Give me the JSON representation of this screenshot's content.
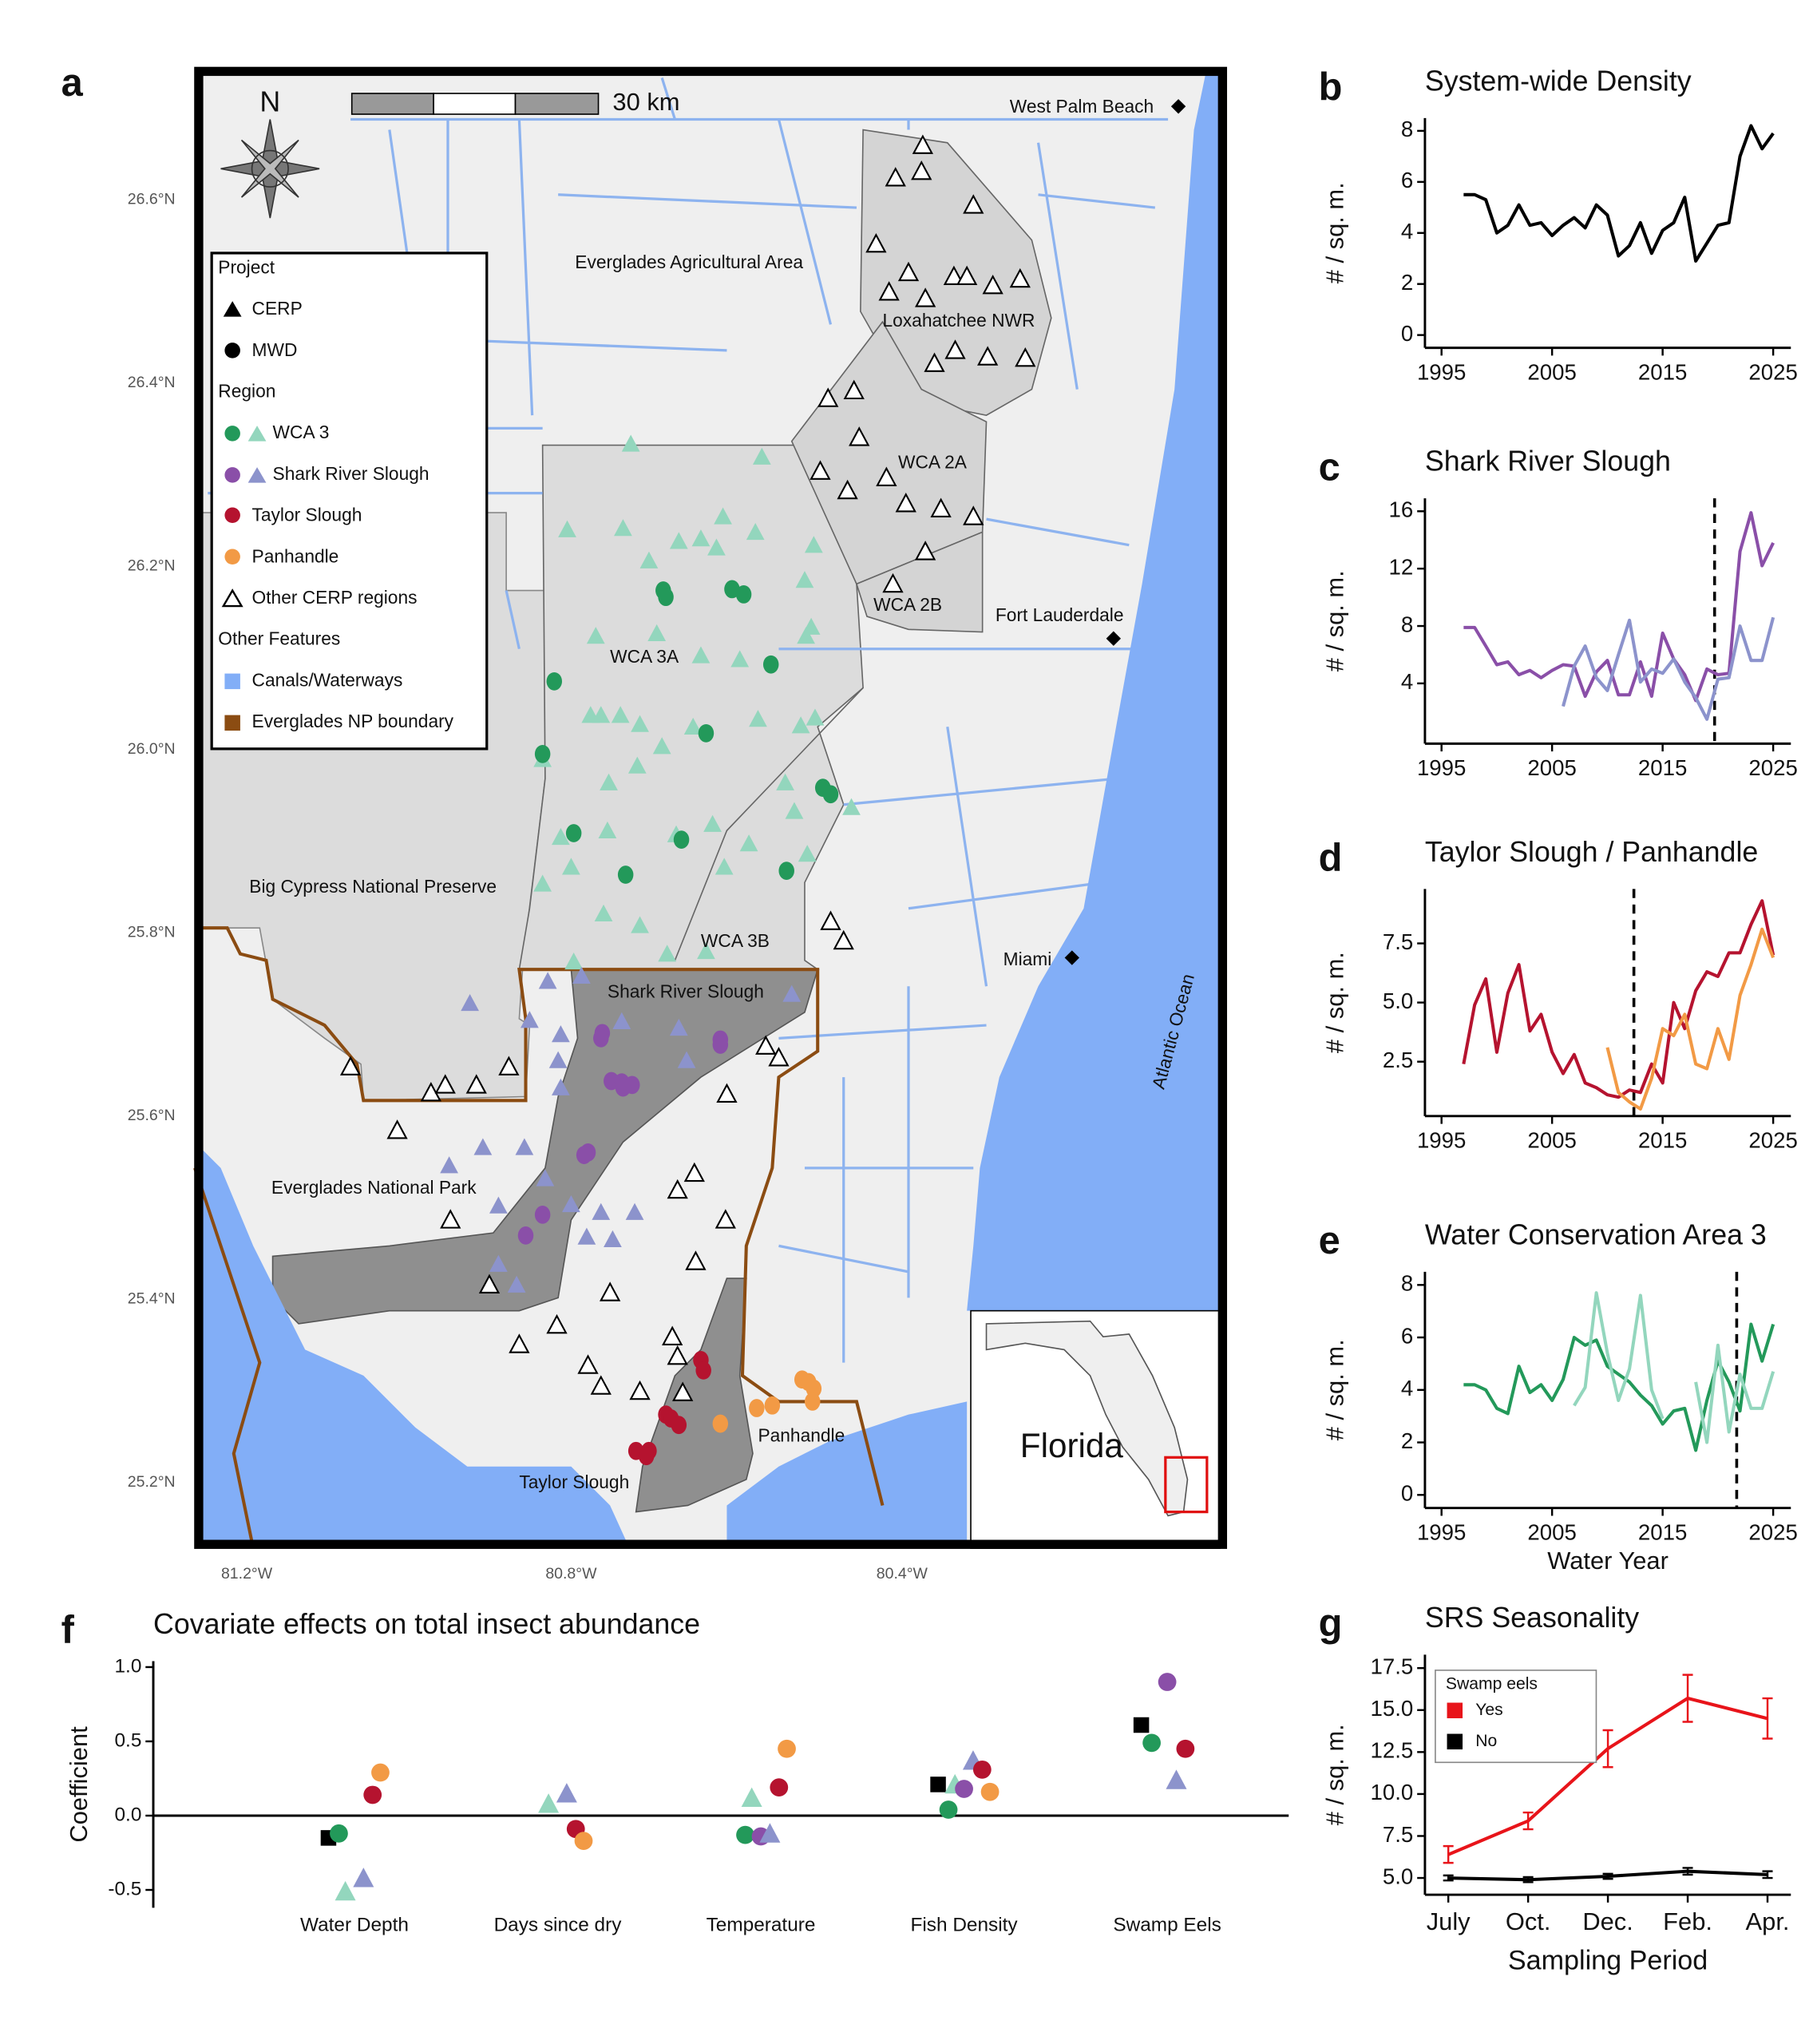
{
  "map": {
    "label": "a",
    "north": "N",
    "scale": "30 km",
    "places": [
      "West Palm Beach",
      "Everglades Agricultural Area",
      "Loxahatchee NWR",
      "WCA 2A",
      "WCA 2B",
      "Fort Lauderdale",
      "WCA 3A",
      "Big Cypress National Preserve",
      "WCA 3B",
      "Miami",
      "Shark River Slough",
      "Atlantic Ocean",
      "Everglades National Park",
      "Panhandle",
      "Taylor Slough",
      "Florida"
    ],
    "legend": [
      "Project",
      "CERP",
      "MWD",
      "Region",
      "WCA 3",
      "Shark River Slough",
      "Taylor Slough",
      "Panhandle",
      "Other CERP regions",
      "Other Features",
      "Canals/Waterways",
      "Everglades NP boundary"
    ],
    "lat_labels": [
      "26.6°N",
      "26.4°N",
      "26.2°N",
      "26.0°N",
      "25.8°N",
      "25.6°N",
      "25.4°N",
      "25.2°N"
    ],
    "lon_labels": [
      "81.2°W",
      "80.8°W",
      "80.4°W"
    ]
  },
  "chart_data": [
    {
      "label": "b",
      "type": "line",
      "title": "System-wide Density",
      "ylabel": "# / sq. m.",
      "x": [
        1997,
        1998,
        1999,
        2000,
        2001,
        2002,
        2003,
        2004,
        2005,
        2006,
        2007,
        2008,
        2009,
        2010,
        2011,
        2012,
        2013,
        2014,
        2015,
        2016,
        2017,
        2018,
        2019,
        2020,
        2021,
        2022,
        2023,
        2024,
        2025
      ],
      "series": [
        {
          "color": "#000000",
          "values": [
            5.5,
            5.5,
            5.3,
            4.0,
            4.3,
            5.1,
            4.3,
            4.4,
            3.9,
            4.3,
            4.6,
            4.2,
            5.1,
            4.7,
            3.1,
            3.5,
            4.4,
            3.2,
            4.1,
            4.4,
            5.4,
            2.9,
            3.6,
            4.3,
            4.4,
            7.0,
            8.2,
            7.3,
            7.9
          ]
        }
      ],
      "xlim": [
        1993.5,
        2026.6
      ],
      "xticks": [
        1995,
        2005,
        2015,
        2025
      ],
      "ylim": [
        -0.5,
        8.5
      ],
      "yticks": [
        0,
        2,
        4,
        6,
        8
      ]
    },
    {
      "label": "c",
      "type": "line",
      "title": "Shark River Slough",
      "ylabel": "# / sq. m.",
      "x": [
        1997,
        1998,
        1999,
        2000,
        2001,
        2002,
        2003,
        2004,
        2005,
        2006,
        2007,
        2008,
        2009,
        2010,
        2011,
        2012,
        2013,
        2014,
        2015,
        2016,
        2017,
        2018,
        2019,
        2020,
        2021,
        2022,
        2023,
        2024,
        2025
      ],
      "series": [
        {
          "color": "#8a4fa8",
          "values": [
            7.9,
            7.9,
            6.6,
            5.3,
            5.5,
            4.6,
            4.9,
            4.4,
            4.9,
            5.3,
            5.2,
            3.1,
            4.8,
            5.6,
            3.2,
            3.2,
            5.5,
            3.1,
            7.5,
            5.7,
            4.6,
            2.8,
            5.0,
            4.6,
            4.7,
            13.2,
            15.9,
            12.2,
            13.8
          ]
        },
        {
          "color": "#8c93cc",
          "values": [
            null,
            null,
            null,
            null,
            null,
            null,
            null,
            null,
            null,
            2.4,
            5.2,
            6.6,
            4.4,
            3.5,
            6.0,
            8.4,
            4.1,
            5.0,
            4.7,
            5.7,
            4.1,
            3.0,
            1.5,
            4.3,
            4.4,
            8.0,
            5.6,
            5.6,
            8.6
          ]
        }
      ],
      "vline": 2019.7,
      "xlim": [
        1993.5,
        2026.6
      ],
      "xticks": [
        1995,
        2005,
        2015,
        2025
      ],
      "ylim": [
        -0.2,
        16.9
      ],
      "yticks": [
        4,
        8,
        12,
        16
      ]
    },
    {
      "label": "d",
      "type": "line",
      "title": "Taylor Slough / Panhandle",
      "ylabel": "# / sq. m.",
      "x": [
        1997,
        1998,
        1999,
        2000,
        2001,
        2002,
        2003,
        2004,
        2005,
        2006,
        2007,
        2008,
        2009,
        2010,
        2011,
        2012,
        2013,
        2014,
        2015,
        2016,
        2017,
        2018,
        2019,
        2020,
        2021,
        2022,
        2023,
        2024,
        2025
      ],
      "series": [
        {
          "color": "#b5132f",
          "values": [
            2.4,
            4.9,
            6.0,
            2.9,
            5.4,
            6.6,
            3.8,
            4.5,
            2.9,
            2.0,
            2.8,
            1.6,
            1.4,
            1.1,
            1.0,
            1.3,
            1.2,
            2.4,
            1.6,
            5.0,
            3.9,
            5.5,
            6.3,
            6.1,
            7.1,
            7.1,
            8.3,
            9.3,
            7.0
          ]
        },
        {
          "color": "#f29a45",
          "values": [
            null,
            null,
            null,
            null,
            null,
            null,
            null,
            null,
            null,
            null,
            null,
            null,
            null,
            3.1,
            1.2,
            0.8,
            0.5,
            1.8,
            3.9,
            3.6,
            4.5,
            2.4,
            2.2,
            3.9,
            2.6,
            5.3,
            6.6,
            8.1,
            6.9
          ]
        }
      ],
      "vline": 2012.4,
      "xlim": [
        1993.5,
        2026.6
      ],
      "xticks": [
        1995,
        2005,
        2015,
        2025
      ],
      "ylim": [
        0.2,
        9.8
      ],
      "yticks": [
        2.5,
        {
          "value": 5,
          "label": "5.0"
        },
        7.5
      ]
    },
    {
      "label": "e",
      "type": "line",
      "title": "Water Conservation Area 3",
      "ylabel": "# / sq. m.",
      "xlabel": "Water Year",
      "x": [
        1997,
        1998,
        1999,
        2000,
        2001,
        2002,
        2003,
        2004,
        2005,
        2006,
        2007,
        2008,
        2009,
        2010,
        2011,
        2012,
        2013,
        2014,
        2015,
        2016,
        2017,
        2018,
        2019,
        2020,
        2021,
        2022,
        2023,
        2024,
        2025
      ],
      "series": [
        {
          "color": "#23995a",
          "values": [
            4.2,
            4.2,
            4.0,
            3.3,
            3.1,
            4.9,
            3.9,
            4.2,
            3.6,
            4.4,
            6.0,
            5.7,
            5.9,
            4.9,
            4.6,
            4.3,
            3.8,
            3.4,
            2.7,
            3.2,
            3.3,
            1.7,
            3.6,
            5.1,
            4.3,
            3.2,
            6.5,
            5.1,
            6.5
          ]
        },
        {
          "color": "#93d6bd",
          "values": [
            null,
            null,
            null,
            null,
            null,
            null,
            null,
            null,
            null,
            null,
            3.4,
            4.1,
            7.7,
            5.4,
            3.6,
            4.8,
            7.6,
            4.0,
            2.9,
            null,
            null,
            4.3,
            2.0,
            5.7,
            2.4,
            4.6,
            3.3,
            3.3,
            4.7
          ]
        }
      ],
      "vline": 2021.7,
      "xlim": [
        1993.5,
        2026.6
      ],
      "xticks": [
        1995,
        2005,
        2015,
        2025
      ],
      "ylim": [
        -0.5,
        8.5
      ],
      "yticks": [
        0,
        2,
        4,
        6,
        8
      ]
    },
    {
      "label": "f",
      "type": "dot",
      "title": "Covariate effects on total insect abundance",
      "ylabel": "Coefficient",
      "categories": [
        "Water Depth",
        "Days since dry",
        "Temperature",
        "Fish Density",
        "Swamp Eels"
      ],
      "series": [
        {
          "color": "#000000",
          "marker": "square",
          "values": [
            -0.15,
            null,
            null,
            0.21,
            0.61
          ]
        },
        {
          "color": "#23995a",
          "marker": "circle",
          "values": [
            -0.12,
            null,
            -0.13,
            0.04,
            0.49
          ]
        },
        {
          "color": "#93d6bd",
          "marker": "triangle",
          "values": [
            -0.51,
            0.08,
            0.12,
            0.21,
            null
          ]
        },
        {
          "color": "#8a4fa8",
          "marker": "circle",
          "values": [
            null,
            null,
            -0.14,
            0.18,
            0.9
          ]
        },
        {
          "color": "#8c93cc",
          "marker": "triangle",
          "values": [
            -0.42,
            0.15,
            -0.12,
            0.37,
            0.24
          ]
        },
        {
          "color": "#b5132f",
          "marker": "circle",
          "values": [
            0.14,
            -0.09,
            0.19,
            0.31,
            0.45
          ]
        },
        {
          "color": "#f29a45",
          "marker": "circle",
          "values": [
            0.29,
            -0.17,
            0.45,
            0.16,
            null
          ]
        }
      ],
      "ylim": [
        -0.62,
        1.04
      ],
      "yticks": [
        {
          "value": 1,
          "label": "1.0"
        },
        0.5,
        {
          "value": 0,
          "label": "0.0"
        },
        -0.5
      ]
    },
    {
      "label": "g",
      "type": "line",
      "title": "SRS Seasonality",
      "ylabel": "# / sq. m.",
      "xlabel": "Sampling Period",
      "legend_title": "Swamp eels",
      "categories": [
        "July",
        "Oct.",
        "Dec.",
        "Feb.",
        "Apr."
      ],
      "series": [
        {
          "name": "Yes",
          "color": "#e8141a",
          "values": [
            6.4,
            8.4,
            12.7,
            15.7,
            14.5
          ],
          "errors": [
            0.5,
            0.5,
            1.1,
            1.4,
            1.2
          ]
        },
        {
          "name": "No",
          "color": "#000000",
          "values": [
            5.0,
            4.9,
            5.1,
            5.4,
            5.2
          ],
          "errors": [
            0.15,
            0.15,
            0.15,
            0.2,
            0.2
          ]
        }
      ],
      "ylim": [
        4.0,
        18.3
      ],
      "yticks": [
        {
          "value": 5,
          "label": "5.0"
        },
        7.5,
        {
          "value": 10,
          "label": "10.0"
        },
        12.5,
        {
          "value": 15,
          "label": "15.0"
        },
        17.5
      ]
    }
  ]
}
